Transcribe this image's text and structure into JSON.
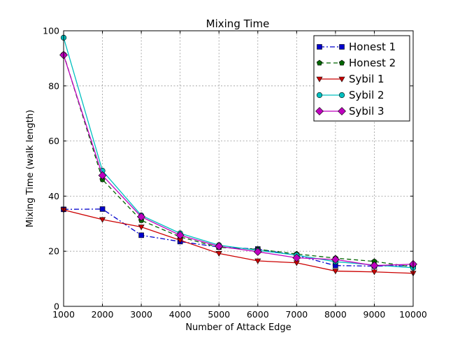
{
  "chart_data": {
    "type": "line",
    "title": "Mixing Time",
    "xlabel": "Number of Attack Edge",
    "ylabel": "Mixing Time (walk length)",
    "xlim": [
      1000,
      10000
    ],
    "ylim": [
      0,
      100
    ],
    "xticks": [
      1000,
      2000,
      3000,
      4000,
      5000,
      6000,
      7000,
      8000,
      9000,
      10000
    ],
    "yticks": [
      0,
      20,
      40,
      60,
      80,
      100
    ],
    "grid": true,
    "legend_position": "top-right",
    "x": [
      1000,
      2000,
      3000,
      4000,
      5000,
      6000,
      7000,
      8000,
      9000,
      10000
    ],
    "series": [
      {
        "name": "Honest 1",
        "color": "#0000cc",
        "marker": "square",
        "line_style": "dashdot",
        "values": [
          35.2,
          35.3,
          25.8,
          23.5,
          21.5,
          20.8,
          18.5,
          14.8,
          14.6,
          14.8
        ]
      },
      {
        "name": "Honest 2",
        "color": "#006600",
        "marker": "pentagon",
        "line_style": "dashed",
        "values": [
          91.5,
          46.0,
          31.2,
          25.2,
          21.4,
          20.7,
          19.0,
          17.5,
          16.3,
          14.3
        ]
      },
      {
        "name": "Sybil 1",
        "color": "#cc0000",
        "marker": "triangle-down",
        "line_style": "solid",
        "values": [
          35.0,
          31.5,
          28.8,
          24.0,
          19.2,
          16.5,
          15.8,
          12.8,
          12.5,
          12.0
        ]
      },
      {
        "name": "Sybil 2",
        "color": "#00bfbf",
        "marker": "circle",
        "line_style": "solid",
        "values": [
          97.5,
          49.2,
          33.0,
          26.5,
          22.2,
          20.3,
          18.6,
          16.2,
          15.0,
          14.0
        ]
      },
      {
        "name": "Sybil 3",
        "color": "#bf00bf",
        "marker": "diamond",
        "line_style": "solid",
        "values": [
          91.2,
          47.5,
          32.5,
          25.8,
          21.8,
          19.8,
          17.6,
          17.0,
          14.8,
          15.3
        ]
      }
    ]
  }
}
